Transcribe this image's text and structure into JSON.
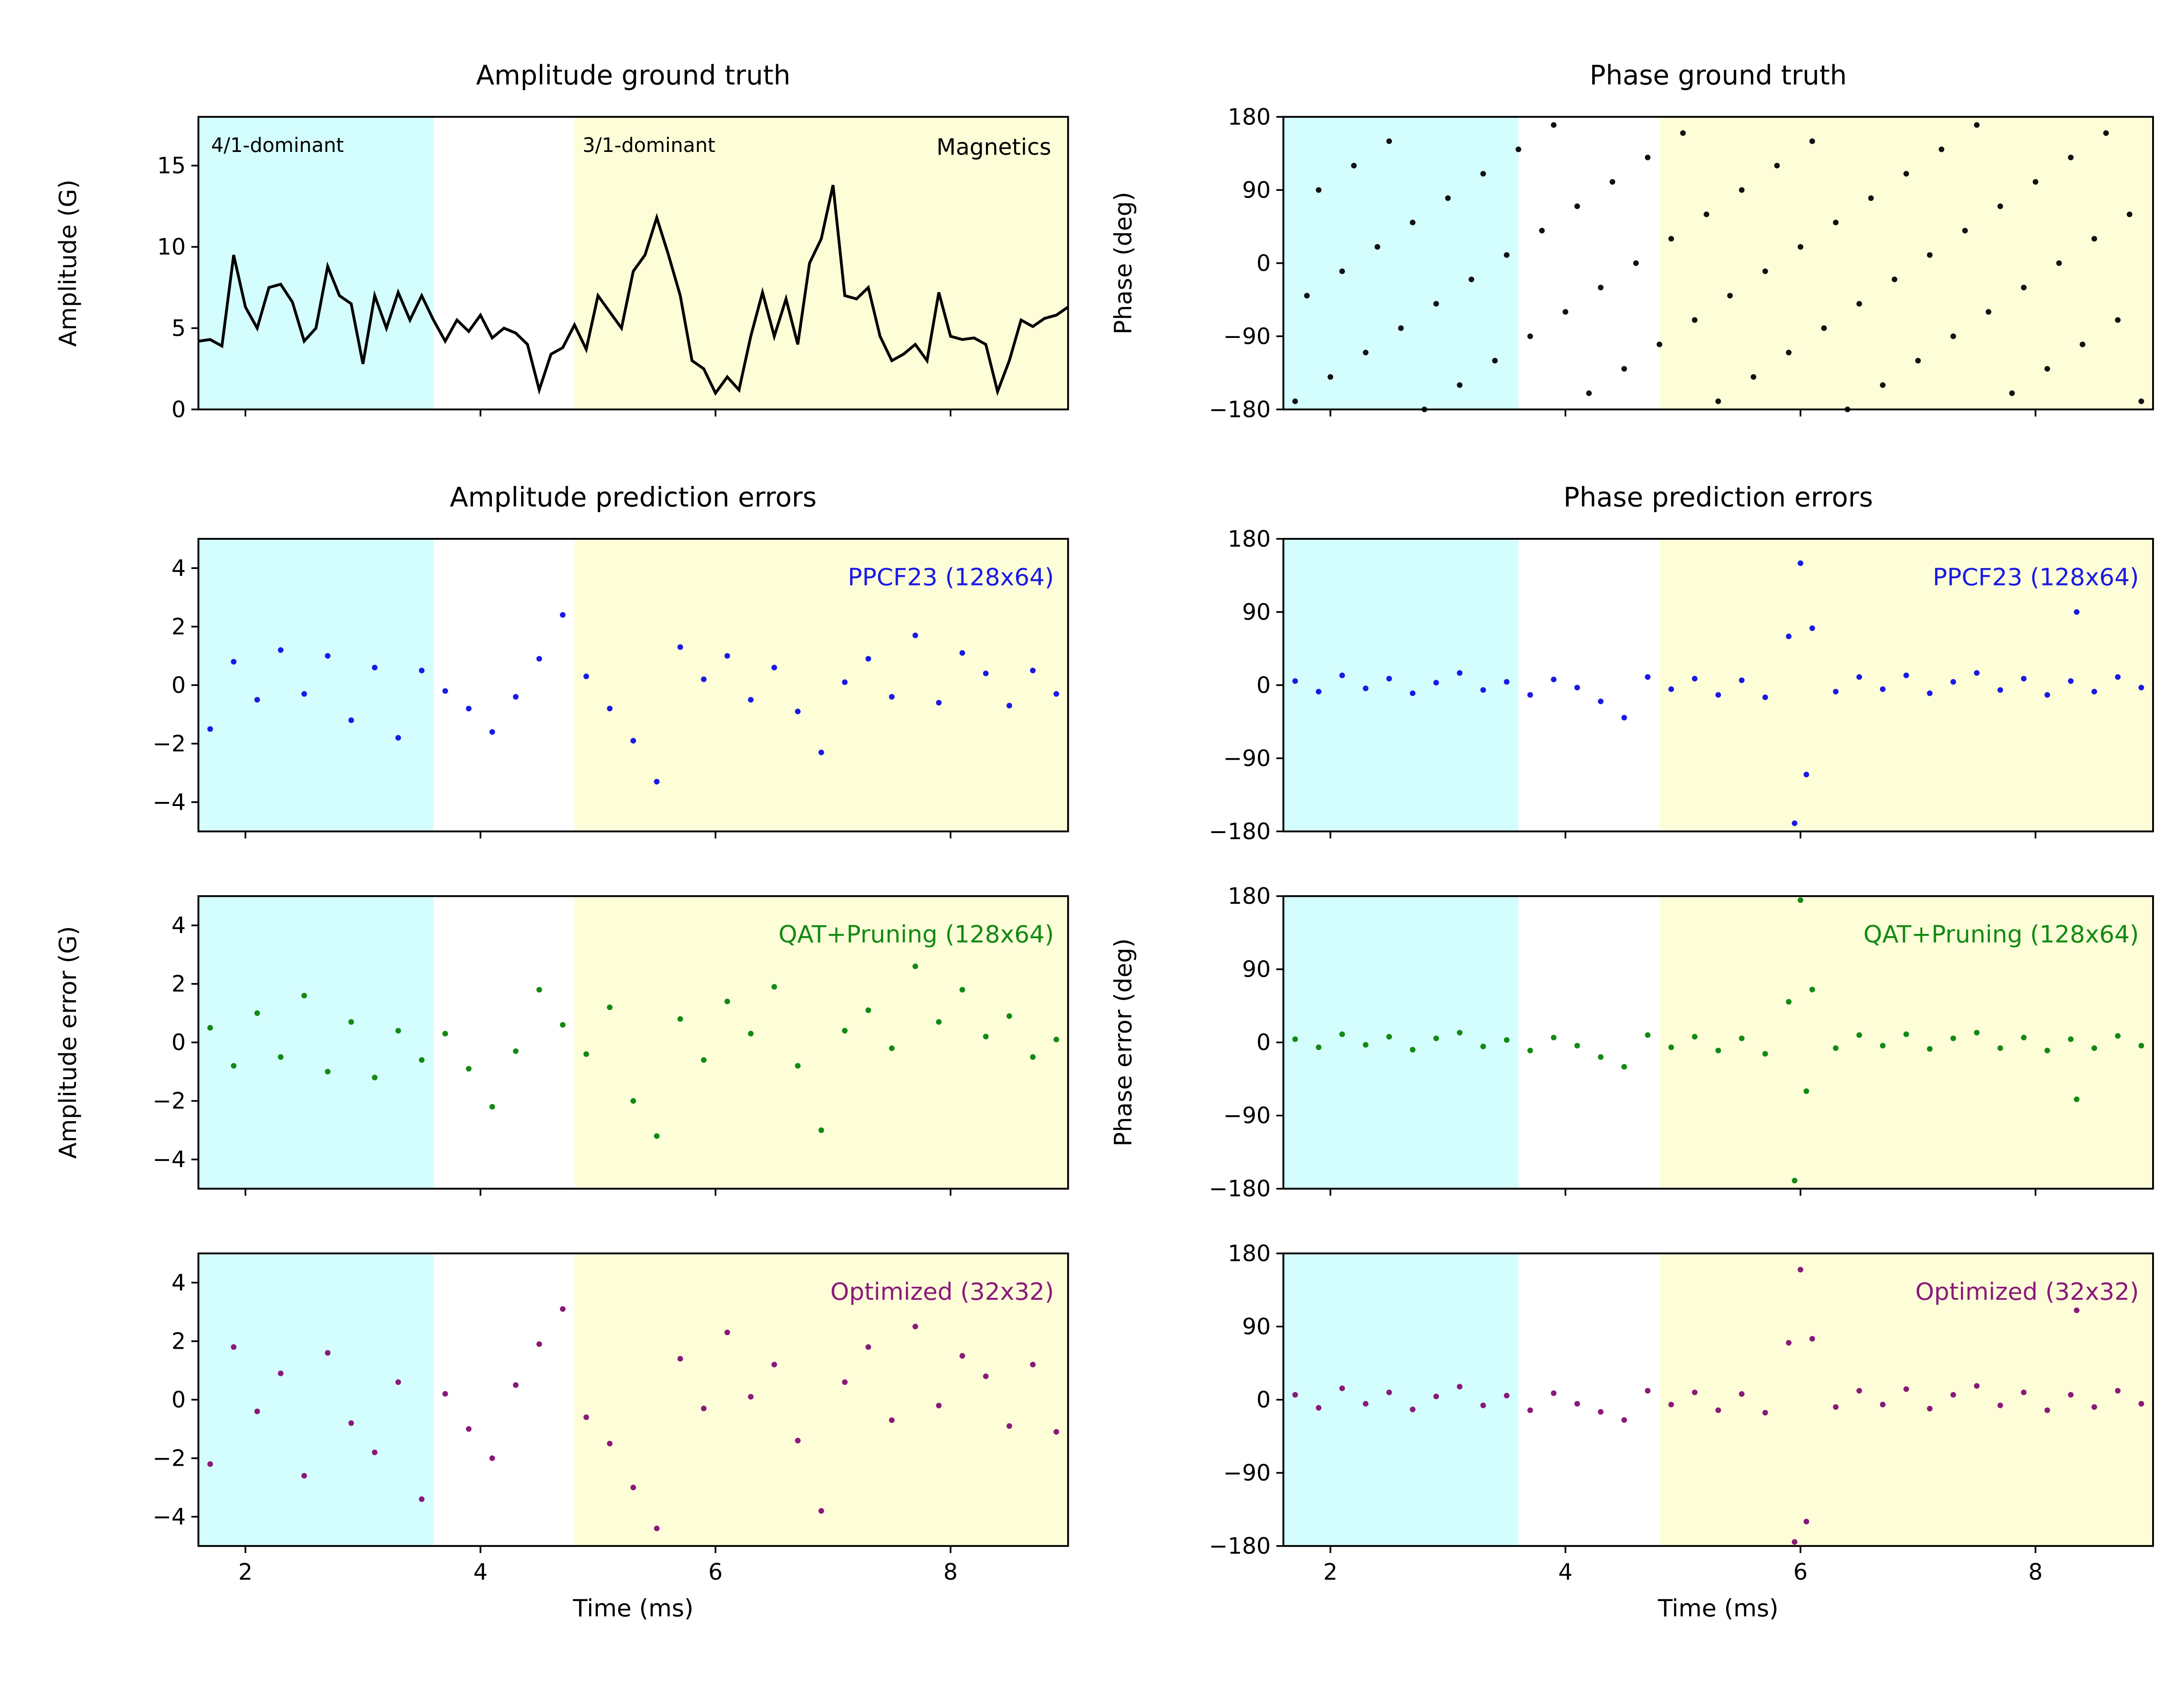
{
  "chart_data": [
    {
      "type": "line",
      "title": "Amplitude ground truth",
      "ylabel": "Amplitude (G)",
      "color": "#000000",
      "annotations": [
        "4/1-dominant",
        "3/1-dominant",
        "Magnetics"
      ],
      "spans": [
        {
          "xlim": [
            1.6,
            3.6
          ],
          "color": "#d4fdfd"
        },
        {
          "xlim": [
            4.8,
            9.0
          ],
          "color": "#fdfdd8"
        }
      ],
      "xlim": [
        1.6,
        9.0
      ],
      "xticks": [
        2,
        4,
        6,
        8
      ],
      "ylim": [
        0,
        18
      ],
      "yticks": [
        0,
        5,
        10,
        15
      ],
      "x": [
        1.6,
        1.7,
        1.8,
        1.9,
        2.0,
        2.1,
        2.2,
        2.3,
        2.4,
        2.5,
        2.6,
        2.7,
        2.8,
        2.9,
        3.0,
        3.1,
        3.2,
        3.3,
        3.4,
        3.5,
        3.6,
        3.7,
        3.8,
        3.9,
        4.0,
        4.1,
        4.2,
        4.3,
        4.4,
        4.5,
        4.6,
        4.7,
        4.8,
        4.9,
        5.0,
        5.1,
        5.2,
        5.3,
        5.4,
        5.5,
        5.6,
        5.7,
        5.8,
        5.9,
        6.0,
        6.1,
        6.2,
        6.3,
        6.4,
        6.5,
        6.6,
        6.7,
        6.8,
        6.9,
        7.0,
        7.1,
        7.2,
        7.3,
        7.4,
        7.5,
        7.6,
        7.7,
        7.8,
        7.9,
        8.0,
        8.1,
        8.2,
        8.3,
        8.4,
        8.5,
        8.6,
        8.7,
        8.8,
        8.9,
        9.0
      ],
      "values": [
        4.2,
        4.3,
        3.9,
        9.5,
        6.3,
        5.0,
        7.5,
        7.7,
        6.6,
        4.2,
        5.0,
        8.8,
        7.0,
        6.5,
        2.8,
        7.0,
        5.0,
        7.2,
        5.5,
        7.0,
        5.5,
        4.2,
        5.5,
        4.8,
        5.8,
        4.4,
        5.0,
        4.7,
        4.0,
        1.2,
        3.4,
        3.8,
        5.2,
        3.7,
        7.0,
        6.0,
        5.0,
        8.5,
        9.5,
        11.8,
        9.5,
        7.0,
        3.0,
        2.5,
        1.0,
        2.0,
        1.2,
        4.5,
        7.2,
        4.5,
        6.8,
        4.0,
        9.0,
        10.5,
        13.8,
        7.0,
        6.8,
        7.5,
        4.5,
        3.0,
        3.4,
        4.0,
        3.0,
        7.2,
        4.5,
        4.3,
        4.4,
        4.0,
        1.1,
        3.0,
        5.5,
        5.1,
        5.6,
        5.8,
        6.3
      ]
    },
    {
      "type": "scatter",
      "title": "Phase ground truth",
      "ylabel": "Phase (deg)",
      "color": "#111111",
      "spans": [
        {
          "xlim": [
            1.6,
            3.6
          ],
          "color": "#d4fdfd"
        },
        {
          "xlim": [
            4.8,
            9.0
          ],
          "color": "#fdfdd8"
        }
      ],
      "xlim": [
        1.6,
        9.0
      ],
      "xticks": [
        2,
        4,
        6,
        8
      ],
      "ylim": [
        -180,
        180
      ],
      "yticks": [
        {
          "value": -180,
          "label": "−180"
        },
        {
          "value": -90,
          "label": "−90"
        },
        0,
        90,
        180
      ],
      "x": [
        1.7,
        1.8,
        1.9,
        2.0,
        2.1,
        2.2,
        2.3,
        2.4,
        2.5,
        2.6,
        2.7,
        2.8,
        2.9,
        3.0,
        3.1,
        3.2,
        3.3,
        3.4,
        3.5,
        3.6,
        3.7,
        3.8,
        3.9,
        4.0,
        4.1,
        4.2,
        4.3,
        4.4,
        4.5,
        4.6,
        4.7,
        4.8,
        4.9,
        5.0,
        5.1,
        5.2,
        5.3,
        5.4,
        5.5,
        5.6,
        5.7,
        5.8,
        5.9,
        6.0,
        6.1,
        6.2,
        6.3,
        6.4,
        6.5,
        6.6,
        6.7,
        6.8,
        6.9,
        7.0,
        7.1,
        7.2,
        7.3,
        7.4,
        7.5,
        7.6,
        7.7,
        7.8,
        7.9,
        8.0,
        8.1,
        8.2,
        8.3,
        8.4,
        8.5,
        8.6,
        8.7,
        8.8,
        8.9
      ],
      "values": [
        -170,
        -40,
        90,
        -140,
        -10,
        120,
        -110,
        20,
        150,
        -80,
        50,
        -180,
        -50,
        80,
        -150,
        -20,
        110,
        -120,
        10,
        140,
        -90,
        40,
        170,
        -60,
        70,
        -160,
        -30,
        100,
        -130,
        0,
        130,
        -100,
        30,
        160,
        -70,
        60,
        -170,
        -40,
        90,
        -140,
        -10,
        120,
        -110,
        20,
        150,
        -80,
        50,
        -180,
        -50,
        80,
        -150,
        -20,
        110,
        -120,
        10,
        140,
        -90,
        40,
        170,
        -60,
        70,
        -160,
        -30,
        100,
        -130,
        0,
        130,
        -100,
        30,
        160,
        -70,
        60,
        -170
      ]
    },
    {
      "type": "scatter",
      "title": "Amplitude prediction errors",
      "label": "PPCF23 (128x64)",
      "color": "#1a1ae6",
      "spans": [
        {
          "xlim": [
            1.6,
            3.6
          ],
          "color": "#d4fdfd"
        },
        {
          "xlim": [
            4.8,
            9.0
          ],
          "color": "#fdfdd8"
        }
      ],
      "xlim": [
        1.6,
        9.0
      ],
      "xticks": [
        2,
        4,
        6,
        8
      ],
      "ylim": [
        -5,
        5
      ],
      "yticks": [
        {
          "value": -4,
          "label": "−4"
        },
        {
          "value": -2,
          "label": "−2"
        },
        0,
        2,
        4
      ],
      "x": [
        1.7,
        1.9,
        2.1,
        2.3,
        2.5,
        2.7,
        2.9,
        3.1,
        3.3,
        3.5,
        3.7,
        3.9,
        4.1,
        4.3,
        4.5,
        4.7,
        4.9,
        5.1,
        5.3,
        5.5,
        5.7,
        5.9,
        6.1,
        6.3,
        6.5,
        6.7,
        6.9,
        7.1,
        7.3,
        7.5,
        7.7,
        7.9,
        8.1,
        8.3,
        8.5,
        8.7,
        8.9
      ],
      "values": [
        -1.5,
        0.8,
        -0.5,
        1.2,
        -0.3,
        1.0,
        -1.2,
        0.6,
        -1.8,
        0.5,
        -0.2,
        -0.8,
        -1.6,
        -0.4,
        0.9,
        2.4,
        0.3,
        -0.8,
        -1.9,
        -3.3,
        1.3,
        0.2,
        1.0,
        -0.5,
        0.6,
        -0.9,
        -2.3,
        0.1,
        0.9,
        -0.4,
        1.7,
        -0.6,
        1.1,
        0.4,
        -0.7,
        0.5,
        -0.3
      ]
    },
    {
      "type": "scatter",
      "title": "Phase prediction errors",
      "label": "PPCF23 (128x64)",
      "color": "#1a1ae6",
      "spans": [
        {
          "xlim": [
            1.6,
            3.6
          ],
          "color": "#d4fdfd"
        },
        {
          "xlim": [
            4.8,
            9.0
          ],
          "color": "#fdfdd8"
        }
      ],
      "xlim": [
        1.6,
        9.0
      ],
      "xticks": [
        2,
        4,
        6,
        8
      ],
      "ylim": [
        -180,
        180
      ],
      "yticks": [
        {
          "value": -180,
          "label": "−180"
        },
        {
          "value": -90,
          "label": "−90"
        },
        0,
        90,
        180
      ],
      "x": [
        1.7,
        1.9,
        2.1,
        2.3,
        2.5,
        2.7,
        2.9,
        3.1,
        3.3,
        3.5,
        3.7,
        3.9,
        4.1,
        4.3,
        4.5,
        4.7,
        4.9,
        5.1,
        5.3,
        5.5,
        5.7,
        5.9,
        5.95,
        6.0,
        6.05,
        6.1,
        6.3,
        6.5,
        6.7,
        6.9,
        7.1,
        7.3,
        7.5,
        7.7,
        7.9,
        8.1,
        8.3,
        8.35,
        8.5,
        8.7,
        8.9
      ],
      "values": [
        5,
        -8,
        12,
        -4,
        8,
        -10,
        3,
        15,
        -6,
        4,
        -12,
        7,
        -3,
        -20,
        -40,
        10,
        -5,
        8,
        -12,
        6,
        -15,
        60,
        -170,
        150,
        -110,
        70,
        -8,
        10,
        -5,
        12,
        -10,
        4,
        15,
        -6,
        8,
        -12,
        5,
        90,
        -8,
        10,
        -3
      ]
    },
    {
      "type": "scatter",
      "ylabel": "Amplitude error (G)",
      "label": "QAT+Pruning (128x64)",
      "color": "#138a13",
      "spans": [
        {
          "xlim": [
            1.6,
            3.6
          ],
          "color": "#d4fdfd"
        },
        {
          "xlim": [
            4.8,
            9.0
          ],
          "color": "#fdfdd8"
        }
      ],
      "xlim": [
        1.6,
        9.0
      ],
      "xticks": [
        2,
        4,
        6,
        8
      ],
      "ylim": [
        -5,
        5
      ],
      "yticks": [
        {
          "value": -4,
          "label": "−4"
        },
        {
          "value": -2,
          "label": "−2"
        },
        0,
        2,
        4
      ],
      "x": [
        1.7,
        1.9,
        2.1,
        2.3,
        2.5,
        2.7,
        2.9,
        3.1,
        3.3,
        3.5,
        3.7,
        3.9,
        4.1,
        4.3,
        4.5,
        4.7,
        4.9,
        5.1,
        5.3,
        5.5,
        5.7,
        5.9,
        6.1,
        6.3,
        6.5,
        6.7,
        6.9,
        7.1,
        7.3,
        7.5,
        7.7,
        7.9,
        8.1,
        8.3,
        8.5,
        8.7,
        8.9
      ],
      "values": [
        0.5,
        -0.8,
        1.0,
        -0.5,
        1.6,
        -1.0,
        0.7,
        -1.2,
        0.4,
        -0.6,
        0.3,
        -0.9,
        -2.2,
        -0.3,
        1.8,
        0.6,
        -0.4,
        1.2,
        -2.0,
        -3.2,
        0.8,
        -0.6,
        1.4,
        0.3,
        1.9,
        -0.8,
        -3.0,
        0.4,
        1.1,
        -0.2,
        2.6,
        0.7,
        1.8,
        0.2,
        0.9,
        -0.5,
        0.1
      ]
    },
    {
      "type": "scatter",
      "ylabel": "Phase error (deg)",
      "label": "QAT+Pruning (128x64)",
      "color": "#138a13",
      "spans": [
        {
          "xlim": [
            1.6,
            3.6
          ],
          "color": "#d4fdfd"
        },
        {
          "xlim": [
            4.8,
            9.0
          ],
          "color": "#fdfdd8"
        }
      ],
      "xlim": [
        1.6,
        9.0
      ],
      "xticks": [
        2,
        4,
        6,
        8
      ],
      "ylim": [
        -180,
        180
      ],
      "yticks": [
        {
          "value": -180,
          "label": "−180"
        },
        {
          "value": -90,
          "label": "−90"
        },
        0,
        90,
        180
      ],
      "x": [
        1.7,
        1.9,
        2.1,
        2.3,
        2.5,
        2.7,
        2.9,
        3.1,
        3.3,
        3.5,
        3.7,
        3.9,
        4.1,
        4.3,
        4.5,
        4.7,
        4.9,
        5.1,
        5.3,
        5.5,
        5.7,
        5.9,
        5.95,
        6.0,
        6.05,
        6.1,
        6.3,
        6.5,
        6.7,
        6.9,
        7.1,
        7.3,
        7.5,
        7.7,
        7.9,
        8.1,
        8.3,
        8.35,
        8.5,
        8.7,
        8.9
      ],
      "values": [
        4,
        -6,
        10,
        -3,
        7,
        -9,
        5,
        12,
        -5,
        3,
        -10,
        6,
        -4,
        -18,
        -30,
        9,
        -6,
        7,
        -10,
        5,
        -14,
        50,
        -170,
        175,
        -60,
        65,
        -7,
        9,
        -4,
        10,
        -8,
        5,
        12,
        -7,
        6,
        -10,
        4,
        -70,
        -7,
        8,
        -4
      ]
    },
    {
      "type": "scatter",
      "xlabel": "Time (ms)",
      "label": "Optimized (32x32)",
      "color": "#8a1a7a",
      "spans": [
        {
          "xlim": [
            1.6,
            3.6
          ],
          "color": "#d4fdfd"
        },
        {
          "xlim": [
            4.8,
            9.0
          ],
          "color": "#fdfdd8"
        }
      ],
      "xlim": [
        1.6,
        9.0
      ],
      "xticks": [
        2,
        4,
        6,
        8
      ],
      "ylim": [
        -5,
        5
      ],
      "yticks": [
        {
          "value": -4,
          "label": "−4"
        },
        {
          "value": -2,
          "label": "−2"
        },
        0,
        2,
        4
      ],
      "x": [
        1.7,
        1.9,
        2.1,
        2.3,
        2.5,
        2.7,
        2.9,
        3.1,
        3.3,
        3.5,
        3.7,
        3.9,
        4.1,
        4.3,
        4.5,
        4.7,
        4.9,
        5.1,
        5.3,
        5.5,
        5.7,
        5.9,
        6.1,
        6.3,
        6.5,
        6.7,
        6.9,
        7.1,
        7.3,
        7.5,
        7.7,
        7.9,
        8.1,
        8.3,
        8.5,
        8.7,
        8.9
      ],
      "values": [
        -2.2,
        1.8,
        -0.4,
        0.9,
        -2.6,
        1.6,
        -0.8,
        -1.8,
        0.6,
        -3.4,
        0.2,
        -1.0,
        -2.0,
        0.5,
        1.9,
        3.1,
        -0.6,
        -1.5,
        -3.0,
        -4.4,
        1.4,
        -0.3,
        2.3,
        0.1,
        1.2,
        -1.4,
        -3.8,
        0.6,
        1.8,
        -0.7,
        2.5,
        -0.2,
        1.5,
        0.8,
        -0.9,
        1.2,
        -1.1
      ]
    },
    {
      "type": "scatter",
      "xlabel": "Time (ms)",
      "label": "Optimized (32x32)",
      "color": "#8a1a7a",
      "spans": [
        {
          "xlim": [
            1.6,
            3.6
          ],
          "color": "#d4fdfd"
        },
        {
          "xlim": [
            4.8,
            9.0
          ],
          "color": "#fdfdd8"
        }
      ],
      "xlim": [
        1.6,
        9.0
      ],
      "xticks": [
        2,
        4,
        6,
        8
      ],
      "ylim": [
        -180,
        180
      ],
      "yticks": [
        {
          "value": -180,
          "label": "−180"
        },
        {
          "value": -90,
          "label": "−90"
        },
        0,
        90,
        180
      ],
      "x": [
        1.7,
        1.9,
        2.1,
        2.3,
        2.5,
        2.7,
        2.9,
        3.1,
        3.3,
        3.5,
        3.7,
        3.9,
        4.1,
        4.3,
        4.5,
        4.7,
        4.9,
        5.1,
        5.3,
        5.5,
        5.7,
        5.9,
        5.95,
        6.0,
        6.05,
        6.1,
        6.3,
        6.5,
        6.7,
        6.9,
        7.1,
        7.3,
        7.5,
        7.7,
        7.9,
        8.1,
        8.3,
        8.35,
        8.5,
        8.7,
        8.9
      ],
      "values": [
        6,
        -10,
        14,
        -5,
        9,
        -12,
        4,
        16,
        -7,
        5,
        -13,
        8,
        -5,
        -15,
        -25,
        11,
        -6,
        9,
        -13,
        7,
        -16,
        70,
        -175,
        160,
        -150,
        75,
        -9,
        11,
        -6,
        13,
        -11,
        6,
        17,
        -7,
        9,
        -13,
        6,
        110,
        -9,
        11,
        -5
      ]
    }
  ]
}
